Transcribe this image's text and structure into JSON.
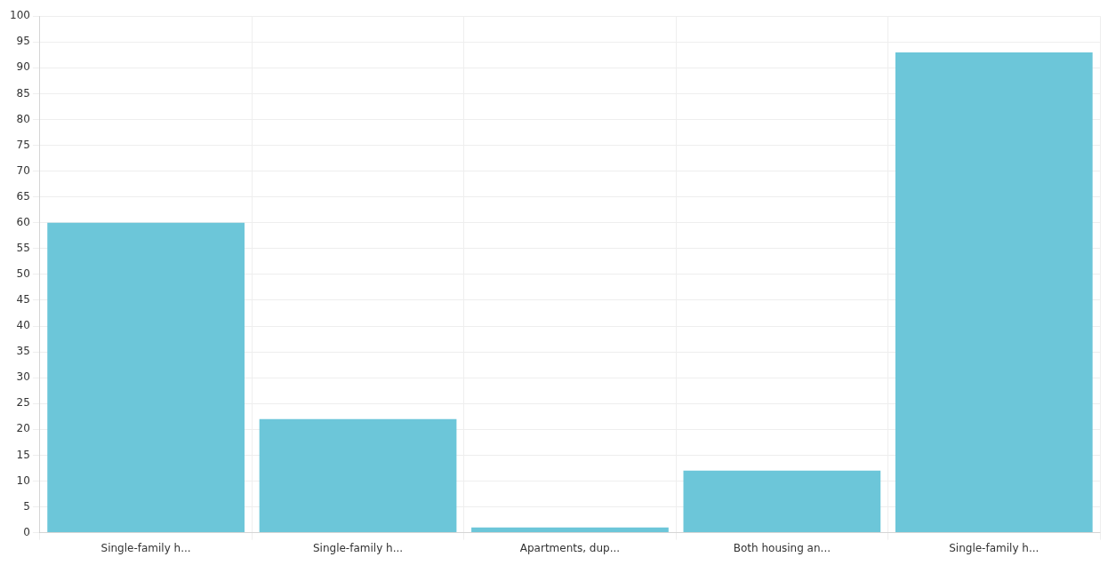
{
  "chart_data": {
    "type": "bar",
    "categories": [
      "Single-family h...",
      "Single-family h...",
      "Apartments, dup...",
      "Both housing an...",
      "Single-family h..."
    ],
    "values": [
      60,
      22,
      1,
      12,
      93
    ],
    "color": "#6cc6d9",
    "ylim": [
      0,
      100
    ],
    "yticks": [
      0,
      5,
      10,
      15,
      20,
      25,
      30,
      35,
      40,
      45,
      50,
      55,
      60,
      65,
      70,
      75,
      80,
      85,
      90,
      95,
      100
    ],
    "grid": true
  }
}
